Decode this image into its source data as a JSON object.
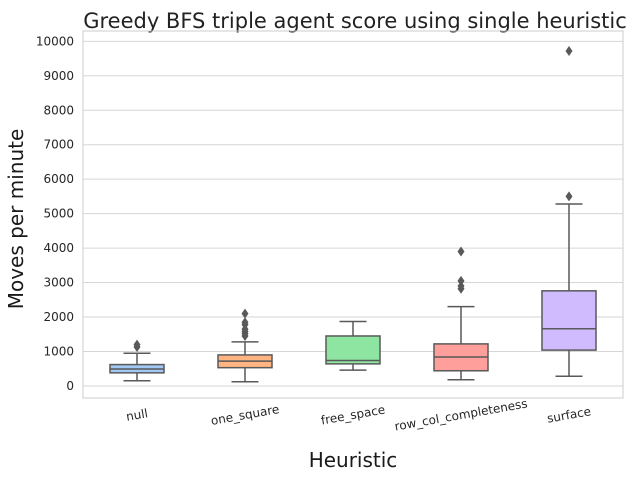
{
  "chart_data": {
    "type": "box",
    "title": "Greedy BFS triple agent score using single heuristic",
    "xlabel": "Heuristic",
    "ylabel": "Moves per minute",
    "ylim": [
      -350,
      10300
    ],
    "yticks": [
      0,
      1000,
      2000,
      3000,
      4000,
      5000,
      6000,
      7000,
      8000,
      9000,
      10000
    ],
    "grid": "horizontal",
    "categories": [
      "null",
      "one_square",
      "free_space",
      "row_col_completeness",
      "surface"
    ],
    "boxes": [
      {
        "category": "null",
        "whisker_low": 150,
        "q1": 380,
        "median": 490,
        "q3": 620,
        "whisker_high": 950,
        "outliers": [
          1130,
          1200
        ],
        "color": "#a1c9f4"
      },
      {
        "category": "one_square",
        "whisker_low": 120,
        "q1": 530,
        "median": 720,
        "q3": 900,
        "whisker_high": 1280,
        "outliers": [
          1450,
          1520,
          1580,
          1650,
          1780,
          1850,
          2100
        ],
        "color": "#ffb482"
      },
      {
        "category": "free_space",
        "whisker_low": 460,
        "q1": 640,
        "median": 740,
        "q3": 1450,
        "whisker_high": 1870,
        "outliers": [],
        "color": "#8de5a1"
      },
      {
        "category": "row_col_completeness",
        "whisker_low": 180,
        "q1": 440,
        "median": 840,
        "q3": 1220,
        "whisker_high": 2300,
        "outliers": [
          2820,
          2900,
          3050,
          3900
        ],
        "color": "#ff9f9b"
      },
      {
        "category": "surface",
        "whisker_low": 280,
        "q1": 1040,
        "median": 1660,
        "q3": 2760,
        "whisker_high": 5280,
        "outliers": [
          5500,
          9720
        ],
        "color": "#d0bbff"
      }
    ]
  }
}
